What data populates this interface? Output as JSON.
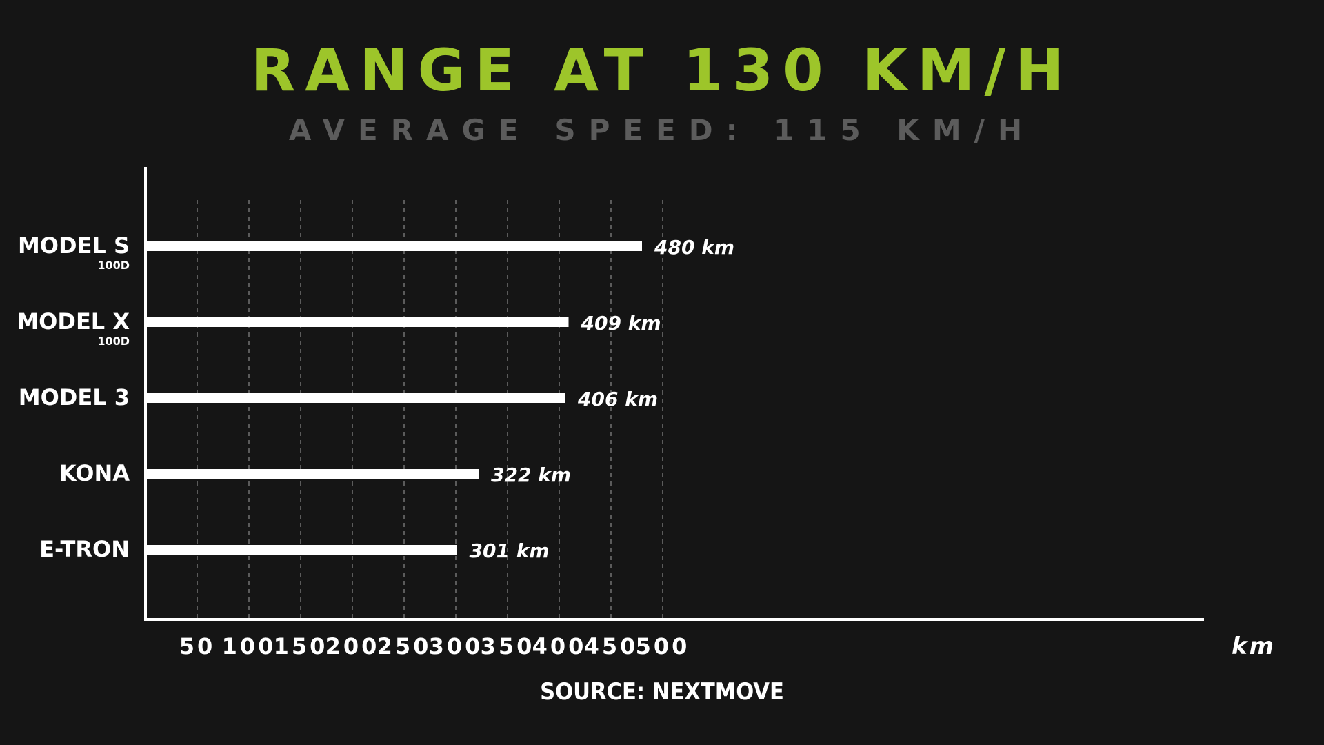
{
  "page": {
    "title": "RANGE AT 130 KM/H",
    "subtitle": "AVERAGE SPEED: 115 KM/H",
    "source": "SOURCE: NEXTMOVE"
  },
  "colors": {
    "background": "#151515",
    "title": "#9dc52a",
    "subtitle": "#5c5c5c",
    "bars": "#ffffff",
    "text": "#ffffff",
    "grid": "#8a8a8a"
  },
  "chart_data": {
    "type": "bar",
    "orientation": "horizontal",
    "categories": [
      "MODEL S",
      "MODEL X",
      "MODEL 3",
      "KONA",
      "E-TRON"
    ],
    "category_sublabels": [
      "100D",
      "100D",
      "",
      "",
      ""
    ],
    "values": [
      480,
      409,
      406,
      322,
      301
    ],
    "value_labels": [
      "480 km",
      "409 km",
      "406 km",
      "322 km",
      "301 km"
    ],
    "x_ticks": [
      50,
      100,
      150,
      200,
      250,
      300,
      350,
      400,
      450,
      500
    ],
    "x_tick_labels": [
      "50",
      "100",
      "150",
      "200",
      "250",
      "300",
      "350",
      "400",
      "450",
      "500"
    ],
    "xlabel": "km",
    "ylabel": "",
    "xlim": [
      0,
      510
    ],
    "grid": "vertical dashed"
  }
}
